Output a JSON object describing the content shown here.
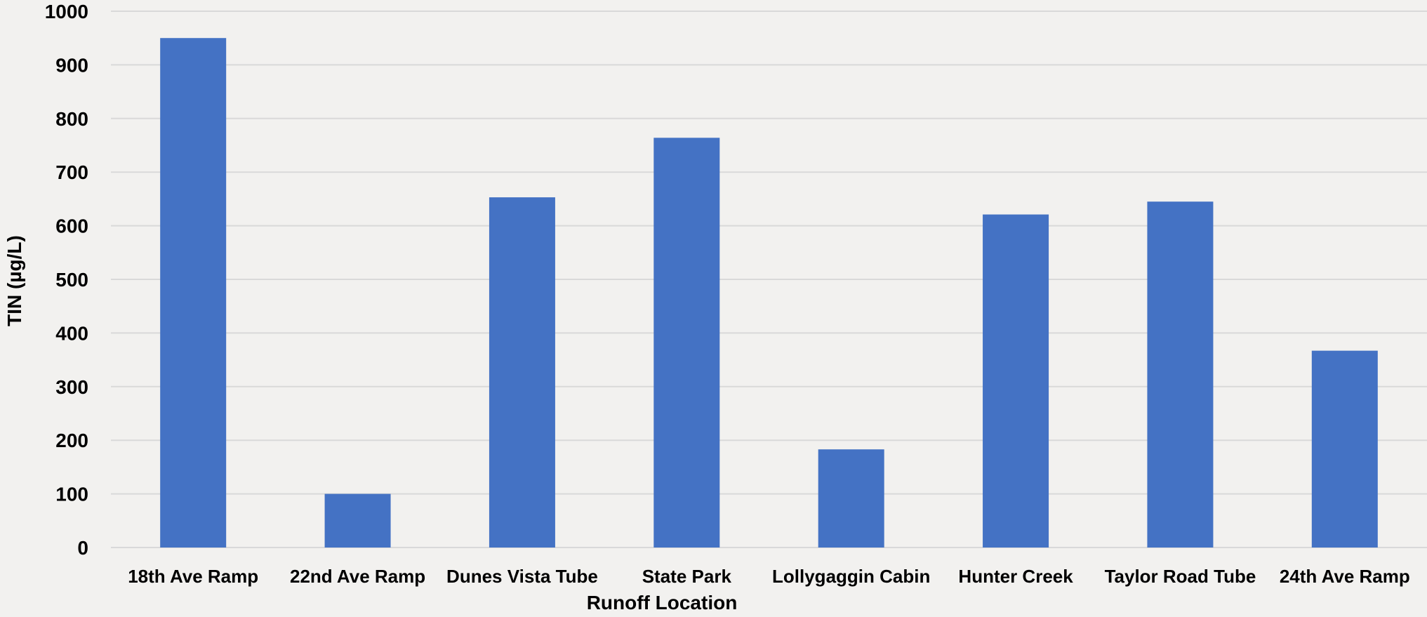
{
  "chart_data": {
    "type": "bar",
    "title": "",
    "xlabel": "Runoff Location",
    "ylabel": "TIN (µg/L)",
    "categories": [
      "18th Ave Ramp",
      "22nd Ave Ramp",
      "Dunes Vista Tube",
      "State Park",
      "Lollygaggin Cabin",
      "Hunter Creek",
      "Taylor Road Tube",
      "24th Ave Ramp"
    ],
    "values": [
      950,
      100,
      653,
      764,
      183,
      621,
      645,
      367
    ],
    "ylim": [
      0,
      1000
    ],
    "yticks": [
      0,
      100,
      200,
      300,
      400,
      500,
      600,
      700,
      800,
      900,
      1000
    ],
    "grid": true,
    "legend": "none",
    "colors": {
      "bar": "#4472c4",
      "grid": "#d9d9d9",
      "background": "#f2f1ef",
      "text": "#000000"
    }
  }
}
